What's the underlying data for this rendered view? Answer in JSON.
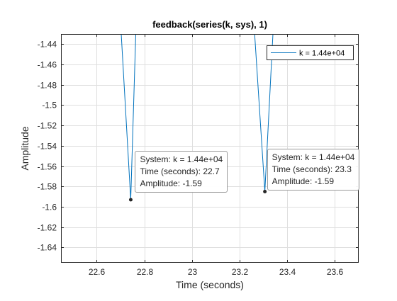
{
  "chart_data": {
    "type": "line",
    "title": "feedback(series(k, sys), 1)",
    "xlabel": "Time (seconds)",
    "ylabel": "Amplitude",
    "xlim": [
      22.45,
      23.7
    ],
    "ylim": [
      -1.655,
      -1.43
    ],
    "grid": true,
    "legend_placement": "top-right",
    "x_ticks": [
      22.6,
      22.8,
      23.0,
      23.2,
      23.4,
      23.6
    ],
    "x_tick_labels": [
      "22.6",
      "22.8",
      "23",
      "23.2",
      "23.4",
      "23.6"
    ],
    "y_ticks": [
      -1.44,
      -1.46,
      -1.48,
      -1.5,
      -1.52,
      -1.54,
      -1.56,
      -1.58,
      -1.6,
      -1.62,
      -1.64
    ],
    "y_tick_labels": [
      "-1.44",
      "-1.46",
      "-1.48",
      "-1.5",
      "-1.52",
      "-1.54",
      "-1.56",
      "-1.58",
      "-1.6",
      "-1.62",
      "-1.64"
    ],
    "series": [
      {
        "name": "k = 1.44e+04",
        "color": "#0072bd",
        "segments": [
          {
            "x": [
              22.703,
              22.743,
              22.764
            ],
            "y": [
              -1.43,
              -1.593,
              -1.43
            ]
          },
          {
            "x": [
              23.263,
              23.306,
              23.34
            ],
            "y": [
              -1.43,
              -1.585,
              -1.43
            ]
          }
        ]
      }
    ],
    "datatips": [
      {
        "x": 22.743,
        "y": -1.593,
        "lines": [
          "System: k = 1.44e+04",
          "Time (seconds): 22.7",
          "Amplitude: -1.59"
        ]
      },
      {
        "x": 23.306,
        "y": -1.585,
        "lines": [
          "System: k = 1.44e+04",
          "Time (seconds): 23.3",
          "Amplitude: -1.59"
        ]
      }
    ]
  }
}
